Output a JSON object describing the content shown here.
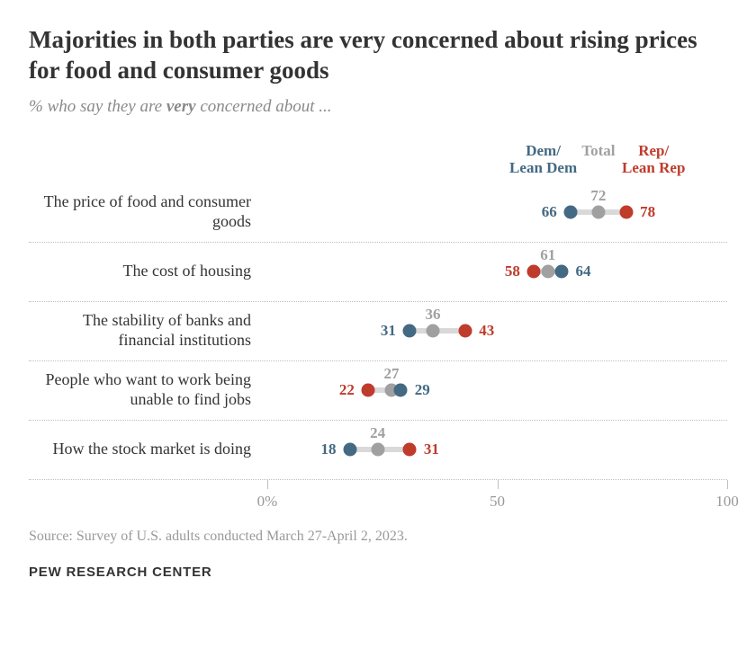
{
  "title": "Majorities in both parties are very concerned about rising prices for food and consumer goods",
  "title_fontsize": 27,
  "title_color": "#333333",
  "subtitle_prefix": "% who say they are ",
  "subtitle_bold": "very",
  "subtitle_suffix": " concerned about ...",
  "subtitle_fontsize": 19,
  "subtitle_color": "#8a8a8a",
  "legend": {
    "dem": {
      "line1": "Dem/",
      "line2": "Lean Dem",
      "color": "#436983"
    },
    "total": {
      "line1": "Total",
      "color": "#a0a0a0"
    },
    "rep": {
      "line1": "Rep/",
      "line2": "Lean Rep",
      "color": "#bf3b2b"
    },
    "fontsize": 17
  },
  "axis": {
    "min": 0,
    "max": 100,
    "ticks": [
      0,
      50,
      100
    ],
    "tick_labels": [
      "0%",
      "50",
      "100"
    ],
    "tick_color": "#bfbfbf",
    "label_color": "#999999",
    "fontsize": 17
  },
  "dot_size": 15,
  "track_color": "#d9d9d9",
  "value_fontsize": 17,
  "label_fontsize": 18,
  "label_color": "#333333",
  "rows": [
    {
      "label": "The price of food and consumer goods",
      "dem": 66,
      "total": 72,
      "rep": 78,
      "dem_side": "left",
      "rep_side": "right",
      "total_pos": "above"
    },
    {
      "label": "The cost of housing",
      "dem": 64,
      "total": 61,
      "rep": 58,
      "dem_side": "right",
      "rep_side": "left",
      "total_pos": "above"
    },
    {
      "label": "The stability of banks and financial institutions",
      "dem": 31,
      "total": 36,
      "rep": 43,
      "dem_side": "left",
      "rep_side": "right",
      "total_pos": "above"
    },
    {
      "label": "People who want to work being unable to find jobs",
      "dem": 29,
      "total": 27,
      "rep": 22,
      "dem_side": "right",
      "rep_side": "left",
      "total_pos": "above"
    },
    {
      "label": "How the stock market is doing",
      "dem": 18,
      "total": 24,
      "rep": 31,
      "dem_side": "left",
      "rep_side": "right",
      "total_pos": "above"
    }
  ],
  "source": "Source: Survey of U.S. adults conducted March 27-April 2, 2023.",
  "source_fontsize": 16,
  "source_color": "#999999",
  "brand": "PEW RESEARCH CENTER",
  "brand_fontsize": 15
}
